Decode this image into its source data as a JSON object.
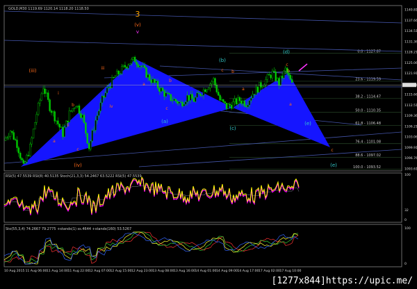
{
  "chart_data": {
    "type": "candlestick",
    "symbol_header": "GOLD,M30  1119.69 1120.14 1118.20 1118.50",
    "last_price": "1118.50",
    "price_ticks": [
      "1140.81",
      "1137.66",
      "1134.51",
      "1131.36",
      "1128.21",
      "1125.06",
      "1121.91",
      "1115.66",
      "1112.51",
      "1109.36",
      "1106.21",
      "1103.06",
      "1099.91",
      "1096.76",
      "1093.61"
    ],
    "ylim": [
      1093.61,
      1140.81
    ],
    "time_ticks": [
      "10 Aug 2015",
      "11 Aug 06:00",
      "11 Aug 14:00",
      "11 Aug 22:00",
      "12 Aug 07:00",
      "12 Aug 15:00",
      "12 Aug 23:00",
      "13 Aug 08:00",
      "13 Aug 16:00",
      "14 Aug 01:00",
      "14 Aug 09:00",
      "14 Aug 17:00",
      "17 Aug 02:00",
      "17 Aug 10:00"
    ],
    "closes": [
      1102,
      1105,
      1101,
      1094,
      1100,
      1110,
      1118,
      1112,
      1108,
      1104,
      1110,
      1113,
      1109,
      1100,
      1108,
      1114,
      1118,
      1121,
      1123,
      1125,
      1126,
      1124,
      1121,
      1119,
      1117,
      1115,
      1114,
      1113,
      1115,
      1114,
      1116,
      1118,
      1120,
      1114,
      1112,
      1113,
      1114,
      1113,
      1116,
      1118,
      1120,
      1122,
      1119,
      1123,
      1118.5
    ],
    "fib_levels": [
      {
        "label": "0.0 - 1127.87",
        "price": 1127.87
      },
      {
        "label": "23.6 - 1119.59",
        "price": 1119.59
      },
      {
        "label": "38.2 - 1114.47",
        "price": 1114.47
      },
      {
        "label": "50.0 - 1110.35",
        "price": 1110.35
      },
      {
        "label": "61.8 - 1106.48",
        "price": 1106.48
      },
      {
        "label": "76.4 - 1101.08",
        "price": 1101.08
      },
      {
        "label": "88.6 - 1097.02",
        "price": 1097.02
      },
      {
        "label": "100.0 - 1093.52",
        "price": 1093.52
      }
    ],
    "wave_labels": [
      "3",
      "(v)",
      "v",
      "(iii)",
      "iii",
      "i",
      "ii",
      "iv",
      "(iv)",
      "a",
      "b",
      "c",
      "(a)",
      "(b)",
      "(c)",
      "(d)",
      "(e)",
      "(e)",
      "a",
      "b",
      "c",
      "a",
      "b",
      "c",
      "c",
      "b",
      "a",
      "c"
    ],
    "rsi_header": "RSI(5) 47.5539  RSI(8) 40.5135  Stoch(21,3,3) 54.2467 63.5222  RSI(5) 47.5539",
    "rsi_ticks": [
      "100",
      "32",
      "0"
    ],
    "stoch_header": "Sto(55,3,4) 74.2667 79.2775  +stands(1) ss.4644  +stands(160) 53.5267",
    "stoch_ticks": [
      "100",
      "0"
    ],
    "colors": {
      "pattern": "#1515ff",
      "candle": "#00c800",
      "rsi": "#ffff00",
      "rsi2": "#ff00ff",
      "label_orange": "#ff6a1a",
      "label_cyan": "#33cccc"
    }
  },
  "watermark": "[1277x844]https://upic.me/"
}
